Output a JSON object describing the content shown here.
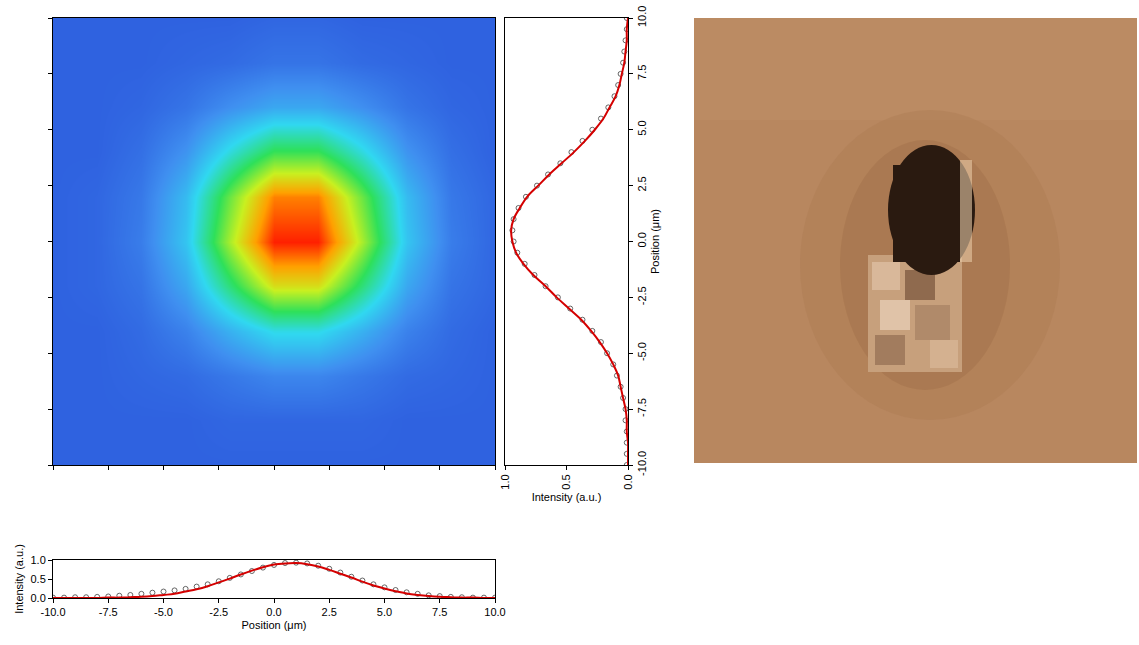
{
  "chart_data": [
    {
      "type": "heatmap",
      "x": [
        -10,
        -8,
        -6,
        -4,
        -2,
        0,
        2,
        4,
        6,
        8,
        10
      ],
      "y": [
        -10,
        -8,
        -6,
        -4,
        -2,
        0,
        2,
        4,
        6,
        8,
        10
      ],
      "z": [
        [
          0.1,
          0.1,
          0.1,
          0.1,
          0.1,
          0.1,
          0.1,
          0.1,
          0.1,
          0.1,
          0.1
        ],
        [
          0.1,
          0.1,
          0.1,
          0.1,
          0.11,
          0.11,
          0.11,
          0.11,
          0.1,
          0.1,
          0.1
        ],
        [
          0.1,
          0.1,
          0.11,
          0.12,
          0.15,
          0.18,
          0.18,
          0.15,
          0.12,
          0.11,
          0.1
        ],
        [
          0.1,
          0.1,
          0.12,
          0.17,
          0.27,
          0.36,
          0.36,
          0.27,
          0.17,
          0.12,
          0.1
        ],
        [
          0.1,
          0.11,
          0.14,
          0.25,
          0.47,
          0.68,
          0.68,
          0.47,
          0.25,
          0.14,
          0.11
        ],
        [
          0.1,
          0.11,
          0.16,
          0.31,
          0.62,
          0.9,
          0.9,
          0.62,
          0.31,
          0.16,
          0.11
        ],
        [
          0.1,
          0.11,
          0.15,
          0.29,
          0.56,
          0.81,
          0.81,
          0.56,
          0.29,
          0.15,
          0.11
        ],
        [
          0.1,
          0.1,
          0.13,
          0.21,
          0.37,
          0.51,
          0.51,
          0.37,
          0.21,
          0.13,
          0.1
        ],
        [
          0.1,
          0.1,
          0.11,
          0.14,
          0.2,
          0.25,
          0.25,
          0.2,
          0.14,
          0.11,
          0.1
        ],
        [
          0.1,
          0.1,
          0.1,
          0.11,
          0.12,
          0.14,
          0.14,
          0.12,
          0.11,
          0.1,
          0.1
        ],
        [
          0.1,
          0.1,
          0.1,
          0.1,
          0.1,
          0.11,
          0.11,
          0.1,
          0.1,
          0.1,
          0.1
        ]
      ],
      "zlim": [
        0,
        1
      ],
      "xlim": [
        -10,
        10
      ],
      "ylim": [
        -10,
        10
      ],
      "xticks": [
        -10,
        -7.5,
        -5,
        -2.5,
        0,
        2.5,
        5,
        7.5,
        10
      ],
      "yticks": [
        -10,
        -7.5,
        -5,
        -2.5,
        0,
        2.5,
        5,
        7.5,
        10
      ],
      "tick_labels": false
    },
    {
      "type": "scatter",
      "x_label": "Position (μm)",
      "y_label": "Intensity (a.u.)",
      "x": [
        -10,
        -9.5,
        -9,
        -8.5,
        -8,
        -7.5,
        -7,
        -6.5,
        -6,
        -5.5,
        -5,
        -4.5,
        -4,
        -3.5,
        -3,
        -2.5,
        -2,
        -1.5,
        -1,
        -0.5,
        0,
        0.5,
        1,
        1.5,
        2,
        2.5,
        3,
        3.5,
        4,
        4.5,
        5,
        5.5,
        6,
        6.5,
        7,
        7.5,
        8,
        8.5,
        9,
        9.5,
        10
      ],
      "series": [
        {
          "type": "scatter",
          "marker": "open_circle",
          "color": "#404040",
          "values": [
            0.01,
            0.01,
            0.02,
            0.02,
            0.03,
            0.04,
            0.06,
            0.08,
            0.11,
            0.14,
            0.17,
            0.2,
            0.24,
            0.3,
            0.36,
            0.44,
            0.53,
            0.62,
            0.71,
            0.8,
            0.87,
            0.92,
            0.93,
            0.91,
            0.85,
            0.77,
            0.67,
            0.56,
            0.46,
            0.36,
            0.28,
            0.21,
            0.15,
            0.11,
            0.07,
            0.05,
            0.03,
            0.02,
            0.01,
            0.01,
            0.01
          ]
        },
        {
          "type": "line",
          "line_style": "solid",
          "color": "#d40000",
          "values": [
            0,
            0,
            0,
            0,
            0,
            0.01,
            0.01,
            0.02,
            0.03,
            0.05,
            0.08,
            0.11,
            0.17,
            0.23,
            0.31,
            0.41,
            0.51,
            0.62,
            0.72,
            0.81,
            0.88,
            0.91,
            0.92,
            0.89,
            0.83,
            0.74,
            0.64,
            0.54,
            0.43,
            0.33,
            0.25,
            0.18,
            0.12,
            0.08,
            0.05,
            0.03,
            0.02,
            0.01,
            0.01,
            0,
            0
          ]
        }
      ],
      "xlim": [
        -10,
        10
      ],
      "ylim": [
        0,
        1
      ],
      "xticks": [
        {
          "value": -10,
          "label": "-10.0"
        },
        -7.5,
        {
          "value": -5,
          "label": "-5.0"
        },
        -2.5,
        {
          "value": 0,
          "label": "0.0"
        },
        2.5,
        {
          "value": 5,
          "label": "5.0"
        },
        7.5,
        {
          "value": 10,
          "label": "10.0"
        }
      ],
      "yticks": [
        {
          "value": 0,
          "label": "0.0"
        },
        0.5,
        {
          "value": 1,
          "label": "1.0"
        }
      ]
    },
    {
      "type": "scatter",
      "x_label": "Intensity (a.u.)",
      "y_label": "Position (μm)",
      "y": [
        -10,
        -9.5,
        -9,
        -8.5,
        -8,
        -7.5,
        -7,
        -6.5,
        -6,
        -5.5,
        -5,
        -4.5,
        -4,
        -3.5,
        -3,
        -2.5,
        -2,
        -1.5,
        -1,
        -0.5,
        0,
        0.5,
        1,
        1.5,
        2,
        2.5,
        3,
        3.5,
        4,
        4.5,
        5,
        5.5,
        6,
        6.5,
        7,
        7.5,
        8,
        8.5,
        9,
        9.5,
        10
      ],
      "series": [
        {
          "type": "scatter",
          "marker": "open_circle",
          "color": "#404040",
          "values": [
            0.01,
            0.01,
            0.01,
            0.01,
            0.02,
            0.02,
            0.04,
            0.06,
            0.09,
            0.12,
            0.17,
            0.22,
            0.29,
            0.37,
            0.47,
            0.57,
            0.67,
            0.76,
            0.84,
            0.9,
            0.93,
            0.94,
            0.93,
            0.89,
            0.83,
            0.74,
            0.65,
            0.55,
            0.46,
            0.37,
            0.29,
            0.22,
            0.16,
            0.11,
            0.08,
            0.06,
            0.04,
            0.03,
            0.02,
            0.01,
            0.01
          ]
        },
        {
          "type": "line",
          "line_style": "solid",
          "color": "#d40000",
          "values": [
            0,
            0,
            0,
            0.01,
            0.01,
            0.02,
            0.04,
            0.06,
            0.08,
            0.12,
            0.17,
            0.23,
            0.3,
            0.38,
            0.48,
            0.58,
            0.67,
            0.77,
            0.85,
            0.91,
            0.94,
            0.95,
            0.93,
            0.88,
            0.82,
            0.73,
            0.64,
            0.54,
            0.44,
            0.35,
            0.27,
            0.2,
            0.15,
            0.1,
            0.07,
            0.05,
            0.03,
            0.02,
            0.01,
            0.01,
            0
          ]
        }
      ],
      "xlim": [
        1,
        0
      ],
      "ylim": [
        -10,
        10
      ],
      "xticks": [
        {
          "value": 1,
          "label": "1.0"
        },
        0.5,
        {
          "value": 0,
          "label": "0.0"
        }
      ],
      "yticks": [
        {
          "value": -10,
          "label": "-10.0"
        },
        -7.5,
        {
          "value": -5,
          "label": "-5.0"
        },
        -2.5,
        {
          "value": 0,
          "label": "0.0"
        },
        2.5,
        {
          "value": 5,
          "label": "5.0"
        },
        7.5,
        {
          "value": 10,
          "label": "10.0"
        }
      ]
    }
  ]
}
